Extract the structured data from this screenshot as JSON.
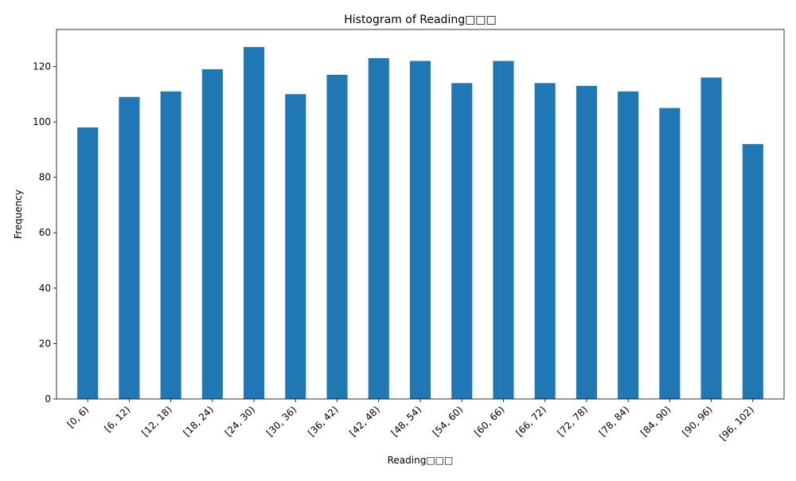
{
  "chart_data": {
    "type": "bar",
    "title": "Histogram of Reading□□□",
    "xlabel": "Reading□□□",
    "ylabel": "Frequency",
    "categories": [
      "[0, 6)",
      "[6, 12)",
      "[12, 18)",
      "[18, 24)",
      "[24, 30)",
      "[30, 36)",
      "[36, 42)",
      "[42, 48)",
      "[48, 54)",
      "[54, 60)",
      "[60, 66)",
      "[66, 72)",
      "[72, 78)",
      "[78, 84)",
      "[84, 90)",
      "[90, 96)",
      "[96, 102)"
    ],
    "values": [
      98,
      109,
      111,
      119,
      127,
      110,
      117,
      123,
      122,
      114,
      122,
      114,
      113,
      111,
      105,
      116,
      92
    ],
    "ylim": [
      0,
      133.35
    ],
    "yticks": [
      0,
      20,
      40,
      60,
      80,
      100,
      120
    ],
    "grid": false,
    "legend": "none",
    "bar_color": "#1f77b4"
  }
}
